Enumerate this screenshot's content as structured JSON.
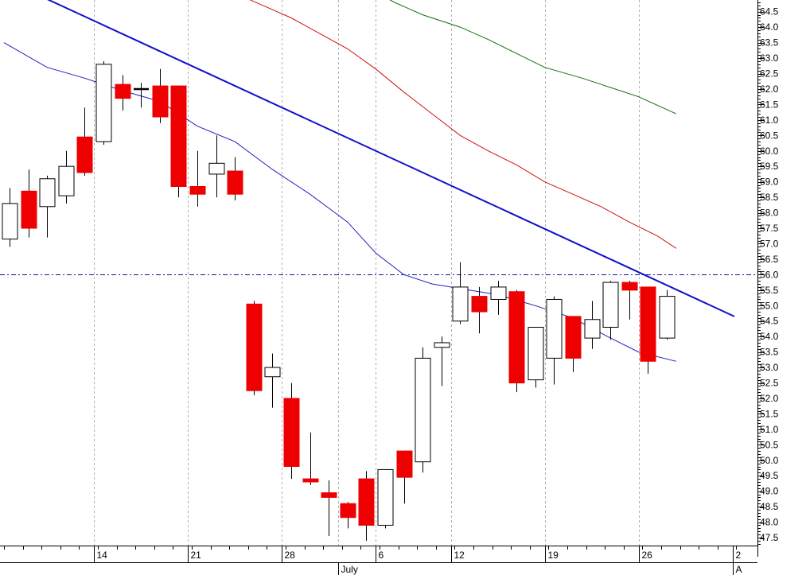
{
  "chart_data": {
    "type": "candlestick",
    "y_axis": {
      "range": [
        47.3,
        65.3
      ],
      "position": "right",
      "tick_labels": [
        "47.5",
        "48.0",
        "48.5",
        "49.0",
        "49.5",
        "50.0",
        "50.5",
        "51.0",
        "51.5",
        "52.0",
        "52.5",
        "53.0",
        "53.5",
        "54.0",
        "54.5",
        "55.0",
        "55.5",
        "56.0",
        "56.5",
        "57.0",
        "57.5",
        "58.0",
        "58.5",
        "59.0",
        "59.5",
        "60.0",
        "60.5",
        "61.0",
        "61.5",
        "62.0",
        "62.5",
        "63.0",
        "63.5",
        "64.0",
        "64.5"
      ]
    },
    "x_axis": {
      "date_labels": [
        {
          "label": "14",
          "bar": 4.7
        },
        {
          "label": "21",
          "bar": 9.7
        },
        {
          "label": "28",
          "bar": 14.7
        },
        {
          "label": "6",
          "bar": 19.7
        },
        {
          "label": "12",
          "bar": 23.7
        },
        {
          "label": "19",
          "bar": 28.7
        },
        {
          "label": "26",
          "bar": 33.7
        },
        {
          "label": "2",
          "bar": 38.7
        }
      ],
      "month_labels": [
        {
          "label": "July",
          "bar": 17.7
        },
        {
          "label": "A",
          "bar": 38.7
        }
      ],
      "vertical_gridlines_at_bars": [
        4.5,
        9.5,
        14.5,
        17.5,
        19.5,
        23.5,
        28.5,
        33.5
      ]
    },
    "candles": [
      {
        "open": 57.15,
        "high": 58.8,
        "low": 56.9,
        "close": 58.3
      },
      {
        "open": 58.7,
        "high": 59.4,
        "low": 57.2,
        "close": 57.5
      },
      {
        "open": 58.2,
        "high": 59.2,
        "low": 57.2,
        "close": 59.1
      },
      {
        "open": 58.55,
        "high": 60.0,
        "low": 58.3,
        "close": 59.5
      },
      {
        "open": 60.45,
        "high": 61.4,
        "low": 59.2,
        "close": 59.3
      },
      {
        "open": 60.3,
        "high": 62.9,
        "low": 60.2,
        "close": 62.8
      },
      {
        "open": 62.15,
        "high": 62.45,
        "low": 61.3,
        "close": 61.7
      },
      {
        "open": 62.0,
        "high": 62.2,
        "low": 61.4,
        "close": 62.0
      },
      {
        "open": 62.1,
        "high": 62.65,
        "low": 60.9,
        "close": 61.1
      },
      {
        "open": 62.1,
        "high": 62.1,
        "low": 58.5,
        "close": 58.85
      },
      {
        "open": 58.85,
        "high": 60.0,
        "low": 58.2,
        "close": 58.6
      },
      {
        "open": 59.25,
        "high": 60.5,
        "low": 58.5,
        "close": 59.6
      },
      {
        "open": 59.35,
        "high": 59.8,
        "low": 58.4,
        "close": 58.6
      },
      {
        "open": 55.05,
        "high": 55.15,
        "low": 52.1,
        "close": 52.25
      },
      {
        "open": 52.7,
        "high": 53.45,
        "low": 51.7,
        "close": 53.0
      },
      {
        "open": 52.0,
        "high": 52.5,
        "low": 49.4,
        "close": 49.8
      },
      {
        "open": 49.4,
        "high": 50.9,
        "low": 49.2,
        "close": 49.3
      },
      {
        "open": 48.95,
        "high": 49.35,
        "low": 47.55,
        "close": 48.8
      },
      {
        "open": 48.6,
        "high": 48.65,
        "low": 47.8,
        "close": 48.15
      },
      {
        "open": 49.4,
        "high": 49.65,
        "low": 47.4,
        "close": 47.9
      },
      {
        "open": 47.9,
        "high": 49.6,
        "low": 47.8,
        "close": 49.7
      },
      {
        "open": 50.3,
        "high": 50.3,
        "low": 48.6,
        "close": 49.45
      },
      {
        "open": 49.95,
        "high": 53.65,
        "low": 49.6,
        "close": 53.3
      },
      {
        "open": 53.65,
        "high": 54.0,
        "low": 52.4,
        "close": 53.8
      },
      {
        "open": 54.5,
        "high": 56.4,
        "low": 54.4,
        "close": 55.6
      },
      {
        "open": 55.3,
        "high": 55.6,
        "low": 54.1,
        "close": 54.8
      },
      {
        "open": 55.2,
        "high": 55.8,
        "low": 54.7,
        "close": 55.6
      },
      {
        "open": 55.45,
        "high": 55.5,
        "low": 52.2,
        "close": 52.5
      },
      {
        "open": 52.6,
        "high": 54.3,
        "low": 52.35,
        "close": 54.3
      },
      {
        "open": 53.3,
        "high": 55.3,
        "low": 52.45,
        "close": 55.2
      },
      {
        "open": 54.65,
        "high": 54.65,
        "low": 52.85,
        "close": 53.3
      },
      {
        "open": 53.95,
        "high": 55.15,
        "low": 53.6,
        "close": 54.55
      },
      {
        "open": 54.3,
        "high": 55.8,
        "low": 53.9,
        "close": 55.75
      },
      {
        "open": 55.75,
        "high": 55.8,
        "low": 54.55,
        "close": 55.5
      },
      {
        "open": 55.6,
        "high": 55.6,
        "low": 52.8,
        "close": 53.2
      },
      {
        "open": 53.95,
        "high": 55.5,
        "low": 53.9,
        "close": 55.3
      }
    ],
    "moving_averages": [
      {
        "color": "#2020c0",
        "points": [
          [
            -0.3,
            63.5
          ],
          [
            2,
            62.7
          ],
          [
            4,
            62.35
          ],
          [
            6,
            61.95
          ],
          [
            8,
            61.6
          ],
          [
            10,
            60.8
          ],
          [
            12,
            60.3
          ],
          [
            14,
            59.4
          ],
          [
            16,
            58.6
          ],
          [
            18,
            57.7
          ],
          [
            19.5,
            56.7
          ],
          [
            21,
            56.0
          ],
          [
            22.5,
            55.7
          ],
          [
            24,
            55.55
          ],
          [
            26,
            55.35
          ],
          [
            28,
            55.0
          ],
          [
            30,
            54.6
          ],
          [
            32,
            53.95
          ],
          [
            33.5,
            53.5
          ],
          [
            35.5,
            53.2
          ]
        ]
      },
      {
        "color": "#d01010",
        "points": [
          [
            10.5,
            65.3
          ],
          [
            12,
            65.1
          ],
          [
            13.5,
            64.7
          ],
          [
            15,
            64.3
          ],
          [
            16.5,
            63.8
          ],
          [
            18,
            63.3
          ],
          [
            19.5,
            62.65
          ],
          [
            21,
            61.9
          ],
          [
            22.5,
            61.2
          ],
          [
            24,
            60.5
          ],
          [
            25.5,
            60.0
          ],
          [
            27,
            59.55
          ],
          [
            28.5,
            59.0
          ],
          [
            30,
            58.6
          ],
          [
            31.5,
            58.2
          ],
          [
            33,
            57.7
          ],
          [
            34.5,
            57.25
          ],
          [
            35.5,
            56.85
          ]
        ]
      },
      {
        "color": "#107010",
        "points": [
          [
            19,
            65.3
          ],
          [
            20.5,
            64.8
          ],
          [
            22,
            64.4
          ],
          [
            24,
            64.0
          ],
          [
            25.5,
            63.6
          ],
          [
            27.5,
            63.0
          ],
          [
            28.5,
            62.7
          ],
          [
            30.5,
            62.35
          ],
          [
            32,
            62.05
          ],
          [
            33.5,
            61.75
          ],
          [
            35.5,
            61.2
          ]
        ]
      }
    ],
    "trendline": {
      "color": "#1010c8",
      "from": [
        -0.3,
        65.55
      ],
      "to": [
        38.6,
        54.65
      ]
    },
    "horizontal_line": {
      "value": 56.0,
      "color": "#1010a0",
      "style": "dash-dot"
    },
    "up_candle_color": "#ffffff",
    "down_candle_color": "#ee0000"
  }
}
